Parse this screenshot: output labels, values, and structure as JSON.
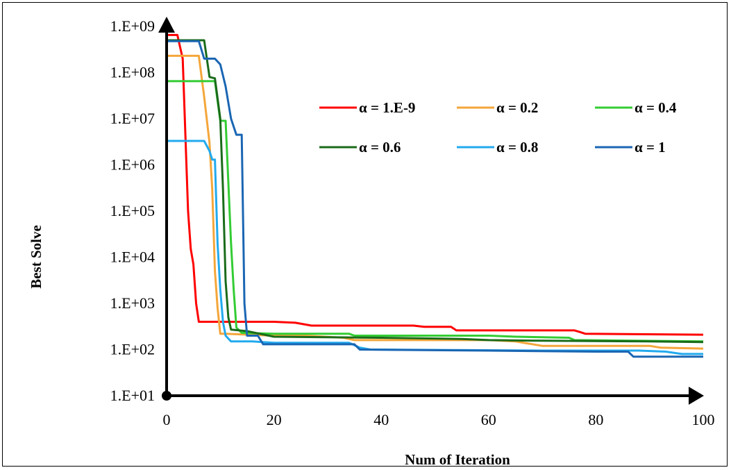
{
  "chart_data": {
    "type": "line",
    "xlabel": "Num of Iteration",
    "ylabel": "Best Solve",
    "xlim": [
      0,
      100
    ],
    "ylim": [
      10,
      1000000000
    ],
    "yscale": "log",
    "grid": false,
    "legend_position": "top-right (inside plot)",
    "x_ticks": [
      "0",
      "20",
      "40",
      "60",
      "80",
      "100"
    ],
    "y_ticks": [
      "1.E+01",
      "1.E+02",
      "1.E+03",
      "1.E+04",
      "1.E+05",
      "1.E+06",
      "1.E+07",
      "1.E+08",
      "1.E+09"
    ],
    "series": [
      {
        "name": "α = 1.E-9",
        "color": "#ff0000",
        "points": [
          [
            0,
            650000000
          ],
          [
            2,
            650000000
          ],
          [
            3,
            200000000
          ],
          [
            4,
            100000
          ],
          [
            4.5,
            15000
          ],
          [
            5,
            7000
          ],
          [
            5.5,
            1000
          ],
          [
            6,
            400
          ],
          [
            7,
            400
          ],
          [
            10,
            400
          ],
          [
            20,
            400
          ],
          [
            24,
            380
          ],
          [
            27,
            330
          ],
          [
            46,
            330
          ],
          [
            48,
            310
          ],
          [
            53,
            310
          ],
          [
            54,
            260
          ],
          [
            76,
            260
          ],
          [
            77,
            240
          ],
          [
            78,
            220
          ],
          [
            100,
            210
          ]
        ]
      },
      {
        "name": "α = 0.2",
        "color": "#f4a63a",
        "points": [
          [
            0,
            230000000
          ],
          [
            6,
            230000000
          ],
          [
            7,
            30000000
          ],
          [
            8,
            3000000
          ],
          [
            8.5,
            300000
          ],
          [
            9,
            5000
          ],
          [
            9.5,
            800
          ],
          [
            10,
            220
          ],
          [
            11,
            220
          ],
          [
            20,
            200
          ],
          [
            26,
            200
          ],
          [
            33,
            180
          ],
          [
            35,
            160
          ],
          [
            60,
            160
          ],
          [
            65,
            150
          ],
          [
            70,
            120
          ],
          [
            90,
            120
          ],
          [
            92,
            110
          ],
          [
            100,
            105
          ]
        ]
      },
      {
        "name": "α = 0.4",
        "color": "#33cc33",
        "points": [
          [
            0,
            65000000
          ],
          [
            9,
            65000000
          ],
          [
            10,
            9000000
          ],
          [
            11,
            9000000
          ],
          [
            12,
            20000
          ],
          [
            12.5,
            2000
          ],
          [
            13,
            300
          ],
          [
            14,
            230
          ],
          [
            20,
            220
          ],
          [
            30,
            220
          ],
          [
            34,
            220
          ],
          [
            35,
            200
          ],
          [
            60,
            200
          ],
          [
            65,
            190
          ],
          [
            75,
            180
          ],
          [
            76,
            160
          ],
          [
            100,
            150
          ]
        ]
      },
      {
        "name": "α = 0.6",
        "color": "#1a6b1a",
        "points": [
          [
            0,
            500000000
          ],
          [
            7,
            500000000
          ],
          [
            8,
            80000000
          ],
          [
            9,
            75000000
          ],
          [
            10,
            10000000
          ],
          [
            10.5,
            300000
          ],
          [
            11,
            3000
          ],
          [
            11.5,
            500
          ],
          [
            12,
            270
          ],
          [
            15,
            250
          ],
          [
            20,
            190
          ],
          [
            30,
            185
          ],
          [
            40,
            180
          ],
          [
            55,
            170
          ],
          [
            60,
            160
          ],
          [
            70,
            155
          ],
          [
            90,
            150
          ],
          [
            100,
            145
          ]
        ]
      },
      {
        "name": "α = 0.8",
        "color": "#22aaee",
        "points": [
          [
            0,
            3300000
          ],
          [
            7,
            3300000
          ],
          [
            8,
            2000000
          ],
          [
            8.5,
            1300000
          ],
          [
            9,
            1300000
          ],
          [
            9.5,
            20000
          ],
          [
            10,
            2000
          ],
          [
            10.5,
            400
          ],
          [
            11,
            200
          ],
          [
            12,
            150
          ],
          [
            16,
            150
          ],
          [
            20,
            140
          ],
          [
            34,
            140
          ],
          [
            36,
            110
          ],
          [
            38,
            100
          ],
          [
            70,
            95
          ],
          [
            88,
            95
          ],
          [
            93,
            90
          ],
          [
            96,
            80
          ],
          [
            100,
            80
          ]
        ]
      },
      {
        "name": "α = 1",
        "color": "#1a66b3",
        "points": [
          [
            0,
            480000000
          ],
          [
            6,
            480000000
          ],
          [
            7,
            200000000
          ],
          [
            9,
            200000000
          ],
          [
            10,
            150000000
          ],
          [
            11,
            50000000
          ],
          [
            12,
            10000000
          ],
          [
            13,
            4500000
          ],
          [
            14,
            4500000
          ],
          [
            14.5,
            1000
          ],
          [
            15,
            200
          ],
          [
            16,
            200
          ],
          [
            17,
            200
          ],
          [
            18,
            130
          ],
          [
            30,
            130
          ],
          [
            35,
            130
          ],
          [
            36,
            100
          ],
          [
            60,
            95
          ],
          [
            80,
            90
          ],
          [
            86,
            90
          ],
          [
            87,
            70
          ],
          [
            100,
            70
          ]
        ]
      }
    ]
  }
}
